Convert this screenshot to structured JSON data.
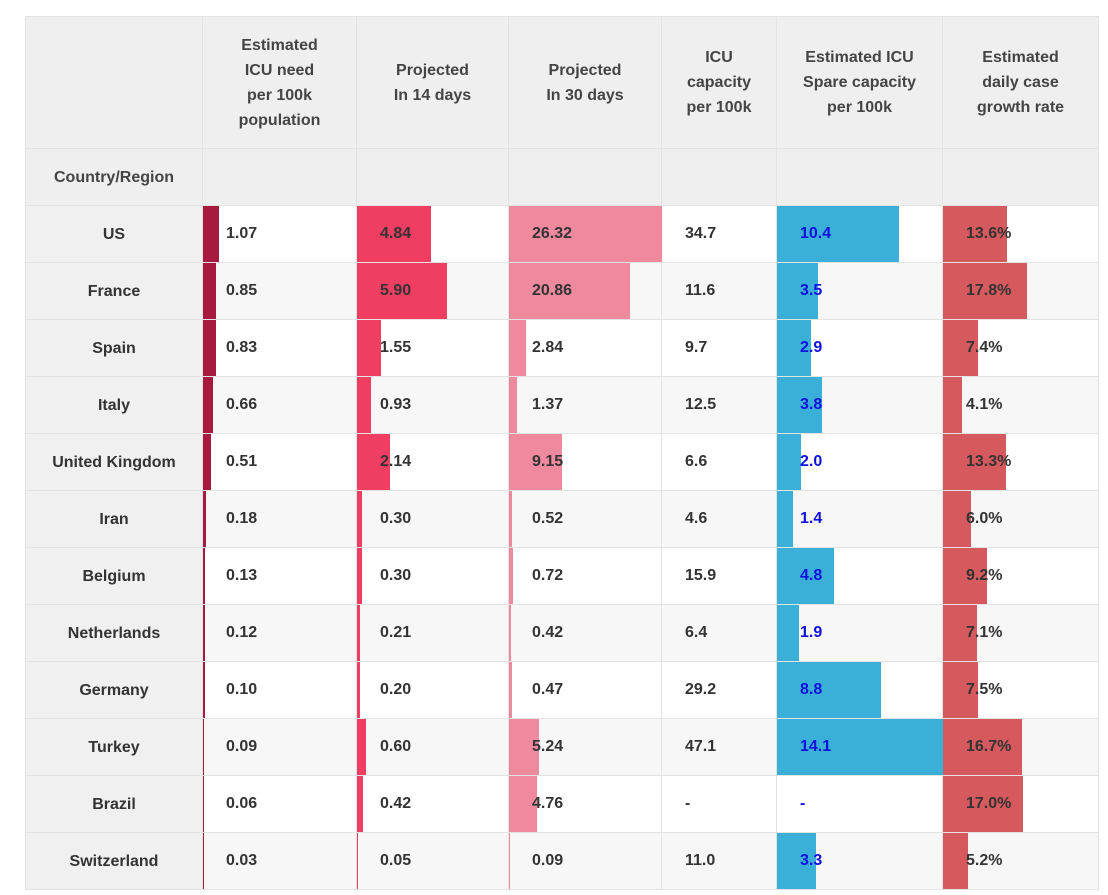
{
  "headers": {
    "country": "Country/Region",
    "icu_need": "Estimated\nICU need\nper 100k\npopulation",
    "proj14": "Projected\nIn 14 days",
    "proj30": "Projected\nIn 30 days",
    "capacity": "ICU\ncapacity\nper 100k",
    "spare": "Estimated ICU\nSpare capacity\nper 100k",
    "growth": "Estimated\ndaily case\ngrowth rate"
  },
  "colors": {
    "icu_need_bar": "#a8193f",
    "proj14_bar": "#f03e63",
    "proj30_bar": "#ef8a9e",
    "spare_bar": "#3ab0d9",
    "growth_bar": "#d65a5d",
    "spare_text": "#1010dd"
  },
  "chart_data": {
    "type": "table",
    "columns": [
      "Country/Region",
      "Estimated ICU need per 100k population",
      "Projected In 14 days",
      "Projected In 30 days",
      "ICU capacity per 100k",
      "Estimated ICU Spare capacity per 100k",
      "Estimated daily case growth rate"
    ],
    "rows": [
      {
        "country": "US",
        "icu_need": "1.07",
        "proj14": "4.84",
        "proj30": "26.32",
        "capacity": "34.7",
        "spare": "10.4",
        "growth": "13.6%"
      },
      {
        "country": "France",
        "icu_need": "0.85",
        "proj14": "5.90",
        "proj30": "20.86",
        "capacity": "11.6",
        "spare": "3.5",
        "growth": "17.8%"
      },
      {
        "country": "Spain",
        "icu_need": "0.83",
        "proj14": "1.55",
        "proj30": "2.84",
        "capacity": "9.7",
        "spare": "2.9",
        "growth": "7.4%"
      },
      {
        "country": "Italy",
        "icu_need": "0.66",
        "proj14": "0.93",
        "proj30": "1.37",
        "capacity": "12.5",
        "spare": "3.8",
        "growth": "4.1%"
      },
      {
        "country": "United Kingdom",
        "icu_need": "0.51",
        "proj14": "2.14",
        "proj30": "9.15",
        "capacity": "6.6",
        "spare": "2.0",
        "growth": "13.3%"
      },
      {
        "country": "Iran",
        "icu_need": "0.18",
        "proj14": "0.30",
        "proj30": "0.52",
        "capacity": "4.6",
        "spare": "1.4",
        "growth": "6.0%"
      },
      {
        "country": "Belgium",
        "icu_need": "0.13",
        "proj14": "0.30",
        "proj30": "0.72",
        "capacity": "15.9",
        "spare": "4.8",
        "growth": "9.2%"
      },
      {
        "country": "Netherlands",
        "icu_need": "0.12",
        "proj14": "0.21",
        "proj30": "0.42",
        "capacity": "6.4",
        "spare": "1.9",
        "growth": "7.1%"
      },
      {
        "country": "Germany",
        "icu_need": "0.10",
        "proj14": "0.20",
        "proj30": "0.47",
        "capacity": "29.2",
        "spare": "8.8",
        "growth": "7.5%"
      },
      {
        "country": "Turkey",
        "icu_need": "0.09",
        "proj14": "0.60",
        "proj30": "5.24",
        "capacity": "47.1",
        "spare": "14.1",
        "growth": "16.7%"
      },
      {
        "country": "Brazil",
        "icu_need": "0.06",
        "proj14": "0.42",
        "proj30": "4.76",
        "capacity": "-",
        "spare": "-",
        "growth": "17.0%"
      },
      {
        "country": "Switzerland",
        "icu_need": "0.03",
        "proj14": "0.05",
        "proj30": "0.09",
        "capacity": "11.0",
        "spare": "3.3",
        "growth": "5.2%"
      }
    ]
  }
}
